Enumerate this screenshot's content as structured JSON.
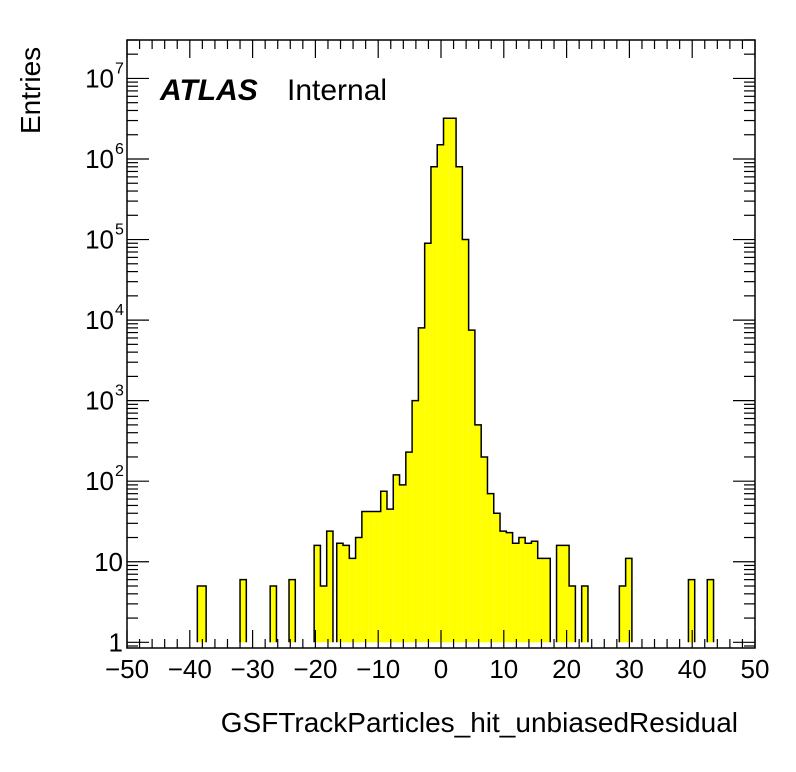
{
  "chart_data": {
    "type": "bar",
    "histogram": true,
    "xlabel": "GSFTrackParticles_hit_unbiasedResidual",
    "ylabel": "Entries",
    "xlim": [
      -50,
      50
    ],
    "ylim": [
      0.85,
      30000000
    ],
    "yscale": "log",
    "bin_width": 1.4,
    "x_ticks": [
      -50,
      -40,
      -30,
      -20,
      -10,
      0,
      10,
      20,
      30,
      40,
      50
    ],
    "x_tick_labels": [
      "−50",
      "−40",
      "−30",
      "−20",
      "−10",
      "0",
      "10",
      "20",
      "30",
      "40",
      "50"
    ],
    "y_ticks": [
      {
        "value": 1,
        "base": "1",
        "exp": ""
      },
      {
        "value": 10,
        "base": "10",
        "exp": ""
      },
      {
        "value": 100,
        "base": "10",
        "exp": "2"
      },
      {
        "value": 1000,
        "base": "10",
        "exp": "3"
      },
      {
        "value": 10000,
        "base": "10",
        "exp": "4"
      },
      {
        "value": 100000,
        "base": "10",
        "exp": "5"
      },
      {
        "value": 1000000,
        "base": "10",
        "exp": "6"
      },
      {
        "value": 10000000,
        "base": "10",
        "exp": "7"
      }
    ],
    "fill_color": "#ffff00",
    "line_color": "#000000",
    "bins": [
      {
        "x0": -38.8,
        "x1": -37.4,
        "value": 5
      },
      {
        "x0": -32.0,
        "x1": -31.0,
        "value": 6
      },
      {
        "x0": -27.2,
        "x1": -26.2,
        "value": 5
      },
      {
        "x0": -24.2,
        "x1": -23.2,
        "value": 6
      },
      {
        "x0": -20.2,
        "x1": -19.2,
        "value": 16
      },
      {
        "x0": -19.2,
        "x1": -18.2,
        "value": 5
      },
      {
        "x0": -18.2,
        "x1": -17.2,
        "value": 24
      },
      {
        "x0": -16.6,
        "x1": -15.6,
        "value": 17
      },
      {
        "x0": -15.6,
        "x1": -14.6,
        "value": 16
      },
      {
        "x0": -14.6,
        "x1": -13.6,
        "value": 11
      },
      {
        "x0": -13.6,
        "x1": -12.6,
        "value": 20
      },
      {
        "x0": -12.6,
        "x1": -11.6,
        "value": 42
      },
      {
        "x0": -11.6,
        "x1": -10.6,
        "value": 42
      },
      {
        "x0": -10.6,
        "x1": -9.6,
        "value": 42
      },
      {
        "x0": -9.6,
        "x1": -8.6,
        "value": 75
      },
      {
        "x0": -8.6,
        "x1": -7.6,
        "value": 45
      },
      {
        "x0": -7.6,
        "x1": -6.6,
        "value": 120
      },
      {
        "x0": -6.6,
        "x1": -5.6,
        "value": 90
      },
      {
        "x0": -5.6,
        "x1": -4.6,
        "value": 230
      },
      {
        "x0": -4.6,
        "x1": -3.6,
        "value": 1000
      },
      {
        "x0": -3.6,
        "x1": -2.6,
        "value": 8000
      },
      {
        "x0": -2.6,
        "x1": -1.6,
        "value": 90000
      },
      {
        "x0": -1.6,
        "x1": -0.6,
        "value": 800000
      },
      {
        "x0": -0.6,
        "x1": 0.4,
        "value": 1500000
      },
      {
        "x0": 0.4,
        "x1": 1.4,
        "value": 3200000
      },
      {
        "x0": 1.4,
        "x1": 2.4,
        "value": 3200000
      },
      {
        "x0": 2.4,
        "x1": 3.4,
        "value": 800000
      },
      {
        "x0": 3.4,
        "x1": 4.4,
        "value": 100000
      },
      {
        "x0": 4.4,
        "x1": 5.4,
        "value": 7500
      },
      {
        "x0": 5.4,
        "x1": 6.4,
        "value": 500
      },
      {
        "x0": 6.4,
        "x1": 7.4,
        "value": 200
      },
      {
        "x0": 7.4,
        "x1": 8.4,
        "value": 70
      },
      {
        "x0": 8.4,
        "x1": 9.4,
        "value": 40
      },
      {
        "x0": 9.4,
        "x1": 10.4,
        "value": 24
      },
      {
        "x0": 10.4,
        "x1": 11.4,
        "value": 23
      },
      {
        "x0": 11.4,
        "x1": 12.4,
        "value": 17
      },
      {
        "x0": 12.4,
        "x1": 13.4,
        "value": 20
      },
      {
        "x0": 13.4,
        "x1": 14.4,
        "value": 17
      },
      {
        "x0": 14.4,
        "x1": 15.4,
        "value": 18
      },
      {
        "x0": 15.4,
        "x1": 16.4,
        "value": 11
      },
      {
        "x0": 16.4,
        "x1": 17.4,
        "value": 11
      },
      {
        "x0": 18.4,
        "x1": 20.4,
        "value": 16
      },
      {
        "x0": 20.4,
        "x1": 21.4,
        "value": 5
      },
      {
        "x0": 22.4,
        "x1": 23.4,
        "value": 5
      },
      {
        "x0": 28.4,
        "x1": 29.4,
        "value": 5
      },
      {
        "x0": 29.4,
        "x1": 30.4,
        "value": 11
      },
      {
        "x0": 39.4,
        "x1": 40.4,
        "value": 6
      },
      {
        "x0": 42.4,
        "x1": 43.4,
        "value": 6
      }
    ]
  },
  "labels": {
    "atlas": "ATLAS",
    "internal": "Internal"
  }
}
